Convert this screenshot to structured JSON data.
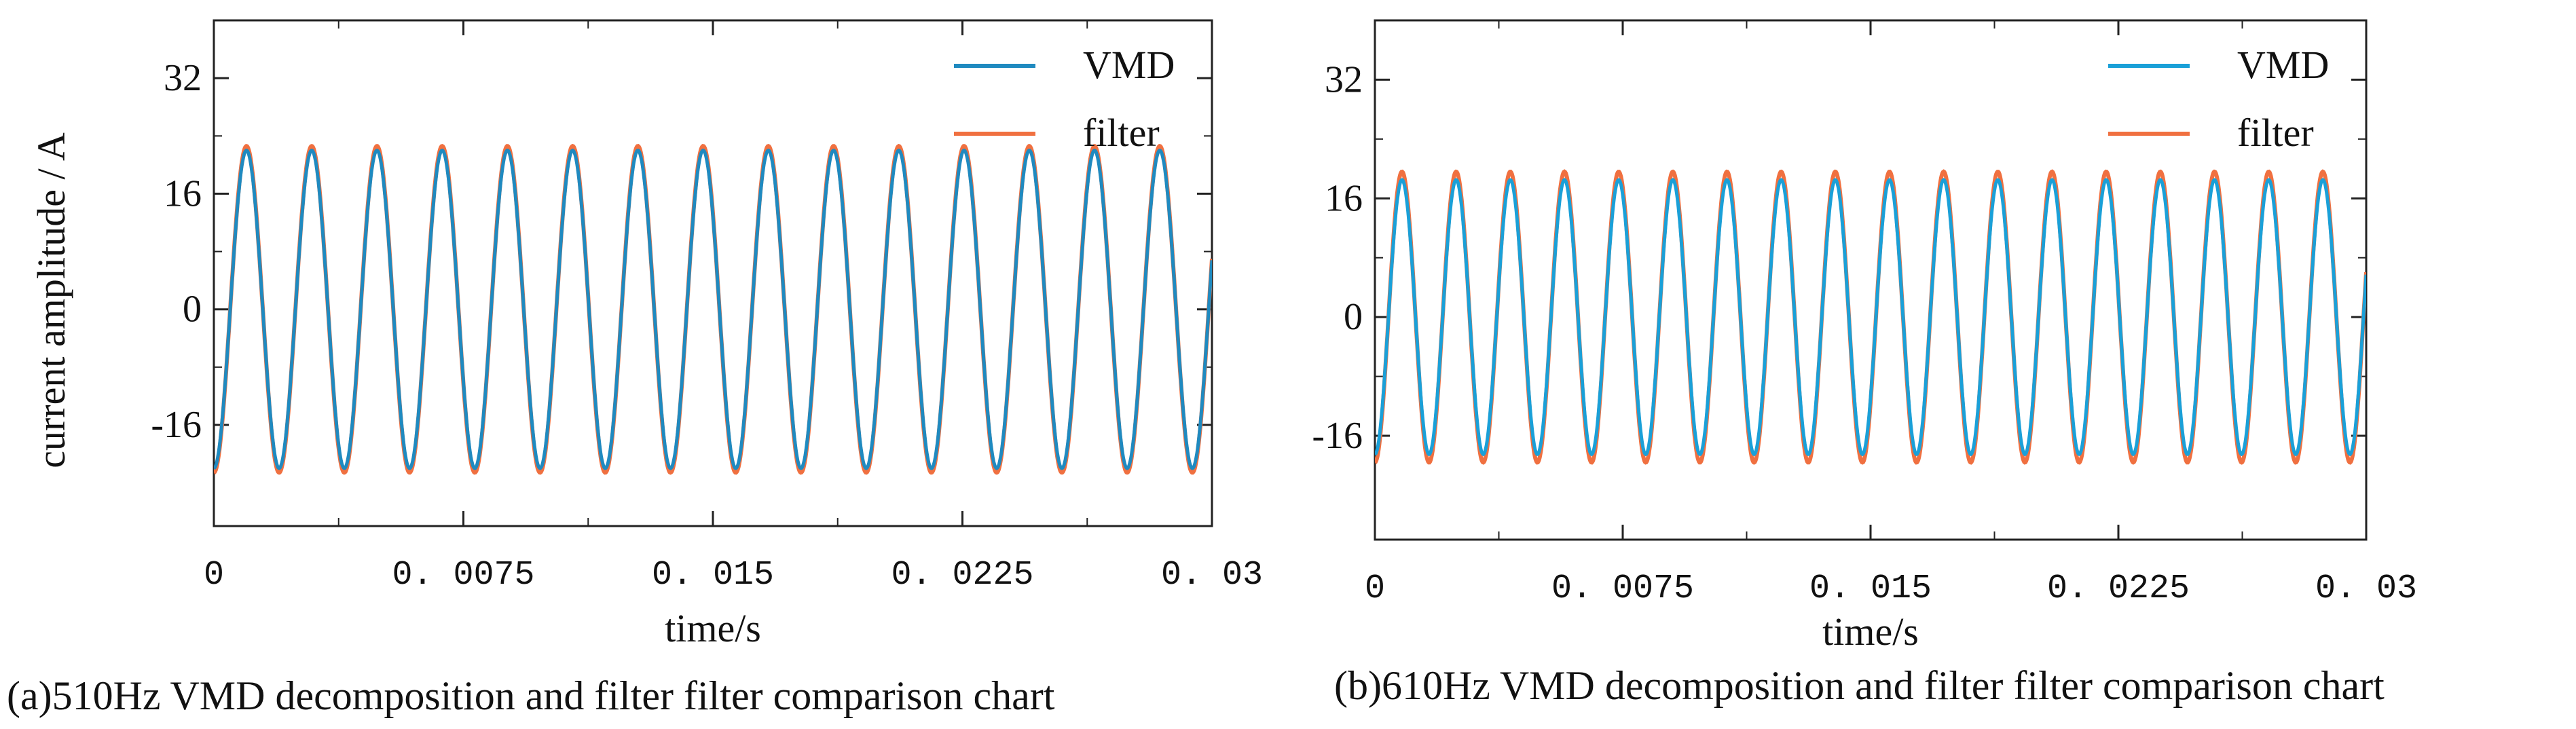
{
  "chart_data": [
    {
      "id": "a",
      "type": "line",
      "caption": "(a)510Hz VMD decomposition and filter filter comparison chart",
      "xlabel": "time/s",
      "ylabel": "current amplitude / A",
      "xlim": [
        0,
        0.03
      ],
      "ylim": [
        -30,
        40
      ],
      "x_tick_labels": [
        {
          "value": 0,
          "label": "0"
        },
        {
          "value": 0.0075,
          "label": "0. 0075"
        },
        {
          "value": 0.015,
          "label": "0. 015"
        },
        {
          "value": 0.0225,
          "label": "0. 0225"
        },
        {
          "value": 0.03,
          "label": "0. 03"
        }
      ],
      "y_tick_labels": [
        {
          "value": 32,
          "label": "32"
        },
        {
          "value": 16,
          "label": "16"
        },
        {
          "value": 0,
          "label": "0"
        },
        {
          "value": -16,
          "label": "-16"
        }
      ],
      "legend_position": "top-right",
      "series": [
        {
          "name": "VMD",
          "color": "#1f8ac0",
          "frequency_hz": 510,
          "amplitude": 22,
          "phase_deg": -90,
          "cycles": 15.3
        },
        {
          "name": "filter",
          "color": "#f07040",
          "frequency_hz": 510,
          "amplitude": 22.6,
          "phase_deg": -90,
          "cycles": 15.3
        }
      ]
    },
    {
      "id": "b",
      "type": "line",
      "caption": "(b)610Hz VMD decomposition and filter filter comparison chart",
      "xlabel": "time/s",
      "ylabel": "",
      "xlim": [
        0,
        0.03
      ],
      "ylim": [
        -30,
        40
      ],
      "x_tick_labels": [
        {
          "value": 0,
          "label": "0"
        },
        {
          "value": 0.0075,
          "label": "0. 0075"
        },
        {
          "value": 0.015,
          "label": "0. 015"
        },
        {
          "value": 0.0225,
          "label": "0. 0225"
        },
        {
          "value": 0.03,
          "label": "0. 03"
        }
      ],
      "y_tick_labels": [
        {
          "value": 32,
          "label": "32"
        },
        {
          "value": 16,
          "label": "16"
        },
        {
          "value": 0,
          "label": "0"
        },
        {
          "value": -16,
          "label": "-16"
        }
      ],
      "legend_position": "top-right",
      "series": [
        {
          "name": "VMD",
          "color": "#1aa0d8",
          "frequency_hz": 610,
          "amplitude": 18.5,
          "phase_deg": -90,
          "cycles": 18.3
        },
        {
          "name": "filter",
          "color": "#f07040",
          "frequency_hz": 610,
          "amplitude": 19.6,
          "phase_deg": -90,
          "cycles": 18.3
        }
      ]
    }
  ]
}
